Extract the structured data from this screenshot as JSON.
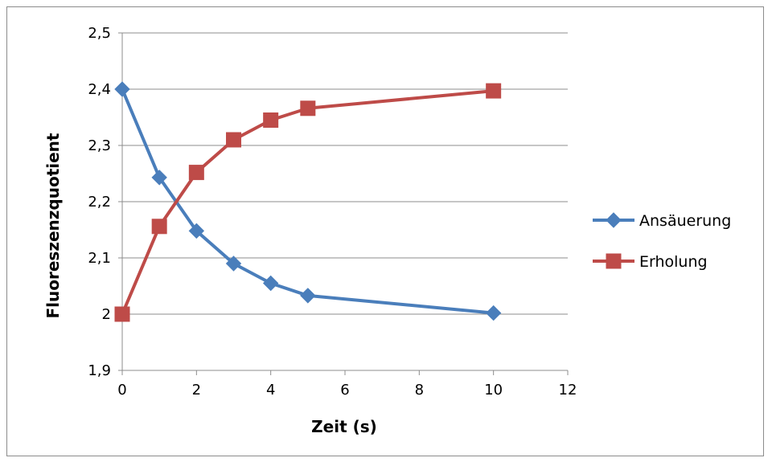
{
  "chart_data": {
    "type": "line",
    "title": "",
    "xlabel": "Zeit (s)",
    "ylabel": "Fluoreszenzquotient",
    "xlim": [
      0,
      12
    ],
    "ylim": [
      1.9,
      2.5
    ],
    "x_ticks": [
      0,
      2,
      4,
      6,
      8,
      10,
      12
    ],
    "x_tick_labels": [
      "0",
      "2",
      "4",
      "6",
      "8",
      "10",
      "12"
    ],
    "y_ticks": [
      1.9,
      2.0,
      2.1,
      2.2,
      2.3,
      2.4,
      2.5
    ],
    "y_tick_labels": [
      "1,9",
      "2",
      "2,1",
      "2,2",
      "2,3",
      "2,4",
      "2,5"
    ],
    "grid": "horizontal",
    "legend_position": "right",
    "series": [
      {
        "name": "Ansäuerung",
        "color": "#4a7ebb",
        "marker": "diamond",
        "x": [
          0,
          1,
          2,
          3,
          4,
          5,
          10
        ],
        "y": [
          2.4,
          2.243,
          2.148,
          2.09,
          2.055,
          2.033,
          2.002
        ]
      },
      {
        "name": "Erholung",
        "color": "#be4b48",
        "marker": "square",
        "x": [
          0,
          1,
          2,
          3,
          4,
          5,
          10
        ],
        "y": [
          2.0,
          2.156,
          2.252,
          2.31,
          2.345,
          2.366,
          2.397
        ]
      }
    ]
  }
}
